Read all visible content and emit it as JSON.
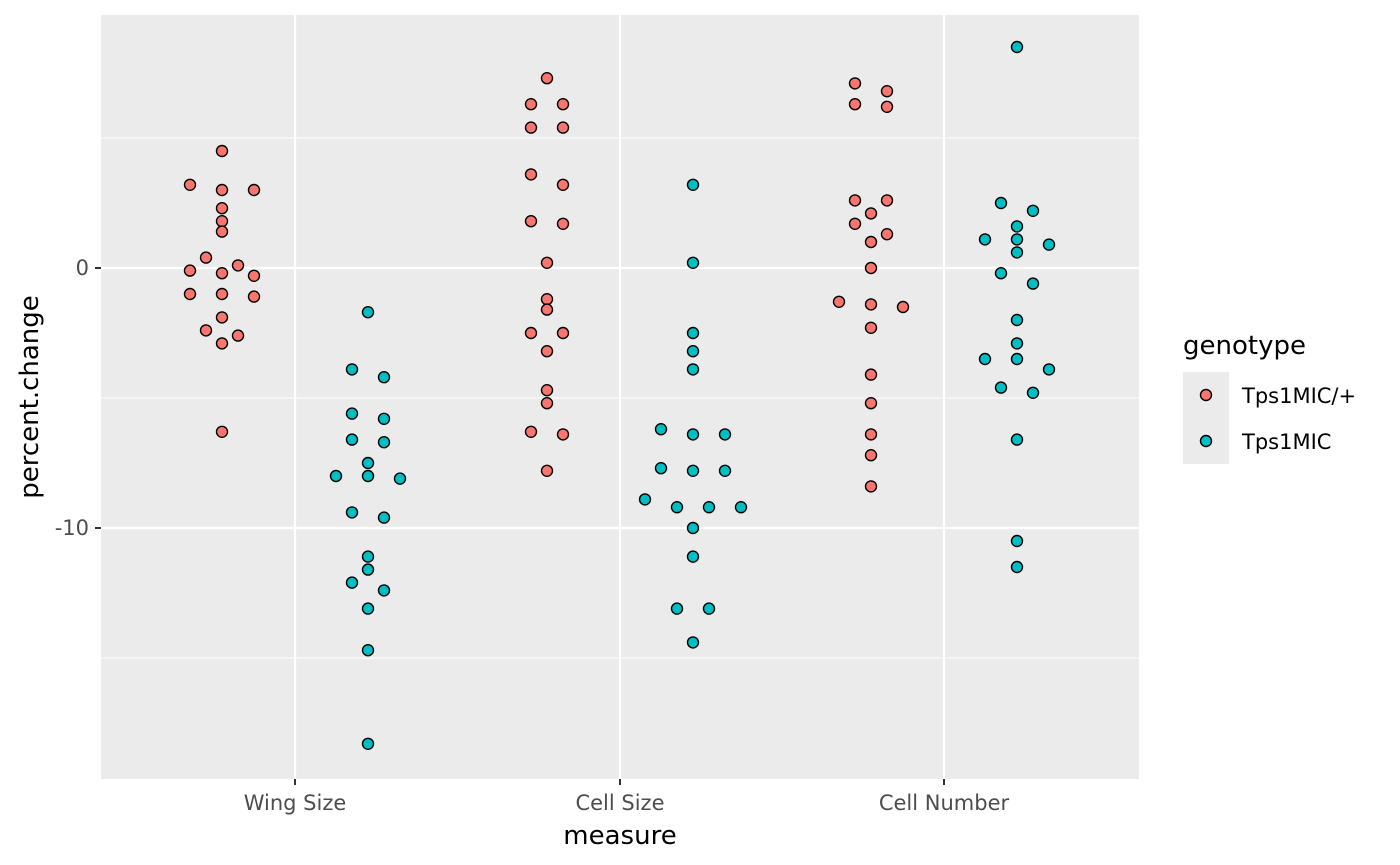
{
  "chart_data": {
    "type": "scatter",
    "subtype": "beeswarm",
    "xlabel": "measure",
    "ylabel": "percent.change",
    "categories": [
      "Wing Size",
      "Cell Size",
      "Cell Number"
    ],
    "y_ticks": [
      0,
      -10
    ],
    "y_tick_labels": [
      "0",
      "-10"
    ],
    "ylim": [
      -19.5,
      9.9
    ],
    "grid": true,
    "legend": {
      "title": "genotype",
      "position": "right"
    },
    "series": [
      {
        "name": "Tps1MIC/+",
        "color": "#F8766D",
        "points": [
          {
            "x": "Wing Size",
            "y": 4.5
          },
          {
            "x": "Wing Size",
            "y": 3.0
          },
          {
            "x": "Wing Size",
            "y": 3.0
          },
          {
            "x": "Wing Size",
            "y": 3.2
          },
          {
            "x": "Wing Size",
            "y": 2.3
          },
          {
            "x": "Wing Size",
            "y": 1.8
          },
          {
            "x": "Wing Size",
            "y": 1.4
          },
          {
            "x": "Wing Size",
            "y": 0.4
          },
          {
            "x": "Wing Size",
            "y": 0.1
          },
          {
            "x": "Wing Size",
            "y": -0.1
          },
          {
            "x": "Wing Size",
            "y": -0.2
          },
          {
            "x": "Wing Size",
            "y": -0.3
          },
          {
            "x": "Wing Size",
            "y": -1.0
          },
          {
            "x": "Wing Size",
            "y": -1.0
          },
          {
            "x": "Wing Size",
            "y": -1.1
          },
          {
            "x": "Wing Size",
            "y": -1.9
          },
          {
            "x": "Wing Size",
            "y": -2.4
          },
          {
            "x": "Wing Size",
            "y": -2.6
          },
          {
            "x": "Wing Size",
            "y": -2.9
          },
          {
            "x": "Wing Size",
            "y": -6.3
          },
          {
            "x": "Cell Size",
            "y": 7.3
          },
          {
            "x": "Cell Size",
            "y": 6.3
          },
          {
            "x": "Cell Size",
            "y": 6.3
          },
          {
            "x": "Cell Size",
            "y": 5.4
          },
          {
            "x": "Cell Size",
            "y": 5.4
          },
          {
            "x": "Cell Size",
            "y": 3.6
          },
          {
            "x": "Cell Size",
            "y": 3.2
          },
          {
            "x": "Cell Size",
            "y": 1.8
          },
          {
            "x": "Cell Size",
            "y": 1.7
          },
          {
            "x": "Cell Size",
            "y": 0.2
          },
          {
            "x": "Cell Size",
            "y": -1.2
          },
          {
            "x": "Cell Size",
            "y": -1.6
          },
          {
            "x": "Cell Size",
            "y": -2.5
          },
          {
            "x": "Cell Size",
            "y": -2.5
          },
          {
            "x": "Cell Size",
            "y": -3.2
          },
          {
            "x": "Cell Size",
            "y": -4.7
          },
          {
            "x": "Cell Size",
            "y": -5.2
          },
          {
            "x": "Cell Size",
            "y": -6.3
          },
          {
            "x": "Cell Size",
            "y": -6.4
          },
          {
            "x": "Cell Size",
            "y": -7.8
          },
          {
            "x": "Cell Number",
            "y": 7.1
          },
          {
            "x": "Cell Number",
            "y": 6.8
          },
          {
            "x": "Cell Number",
            "y": 6.3
          },
          {
            "x": "Cell Number",
            "y": 6.2
          },
          {
            "x": "Cell Number",
            "y": 2.6
          },
          {
            "x": "Cell Number",
            "y": 2.6
          },
          {
            "x": "Cell Number",
            "y": 2.1
          },
          {
            "x": "Cell Number",
            "y": 1.7
          },
          {
            "x": "Cell Number",
            "y": 1.3
          },
          {
            "x": "Cell Number",
            "y": 1.0
          },
          {
            "x": "Cell Number",
            "y": 0.0
          },
          {
            "x": "Cell Number",
            "y": -1.3
          },
          {
            "x": "Cell Number",
            "y": -1.4
          },
          {
            "x": "Cell Number",
            "y": -1.5
          },
          {
            "x": "Cell Number",
            "y": -2.3
          },
          {
            "x": "Cell Number",
            "y": -4.1
          },
          {
            "x": "Cell Number",
            "y": -5.2
          },
          {
            "x": "Cell Number",
            "y": -6.4
          },
          {
            "x": "Cell Number",
            "y": -7.2
          },
          {
            "x": "Cell Number",
            "y": -8.4
          }
        ]
      },
      {
        "name": "Tps1MIC",
        "color": "#00BFC4",
        "points": [
          {
            "x": "Wing Size",
            "y": -1.7
          },
          {
            "x": "Wing Size",
            "y": -3.9
          },
          {
            "x": "Wing Size",
            "y": -4.2
          },
          {
            "x": "Wing Size",
            "y": -5.6
          },
          {
            "x": "Wing Size",
            "y": -5.8
          },
          {
            "x": "Wing Size",
            "y": -6.6
          },
          {
            "x": "Wing Size",
            "y": -6.7
          },
          {
            "x": "Wing Size",
            "y": -7.5
          },
          {
            "x": "Wing Size",
            "y": -8.0
          },
          {
            "x": "Wing Size",
            "y": -8.0
          },
          {
            "x": "Wing Size",
            "y": -8.1
          },
          {
            "x": "Wing Size",
            "y": -9.4
          },
          {
            "x": "Wing Size",
            "y": -9.6
          },
          {
            "x": "Wing Size",
            "y": -11.1
          },
          {
            "x": "Wing Size",
            "y": -11.6
          },
          {
            "x": "Wing Size",
            "y": -12.1
          },
          {
            "x": "Wing Size",
            "y": -12.4
          },
          {
            "x": "Wing Size",
            "y": -13.1
          },
          {
            "x": "Wing Size",
            "y": -14.7
          },
          {
            "x": "Wing Size",
            "y": -18.3
          },
          {
            "x": "Cell Size",
            "y": 3.2
          },
          {
            "x": "Cell Size",
            "y": 0.2
          },
          {
            "x": "Cell Size",
            "y": -2.5
          },
          {
            "x": "Cell Size",
            "y": -3.2
          },
          {
            "x": "Cell Size",
            "y": -3.9
          },
          {
            "x": "Cell Size",
            "y": -6.2
          },
          {
            "x": "Cell Size",
            "y": -6.4
          },
          {
            "x": "Cell Size",
            "y": -6.4
          },
          {
            "x": "Cell Size",
            "y": -7.7
          },
          {
            "x": "Cell Size",
            "y": -7.8
          },
          {
            "x": "Cell Size",
            "y": -7.8
          },
          {
            "x": "Cell Size",
            "y": -8.9
          },
          {
            "x": "Cell Size",
            "y": -9.2
          },
          {
            "x": "Cell Size",
            "y": -9.2
          },
          {
            "x": "Cell Size",
            "y": -9.2
          },
          {
            "x": "Cell Size",
            "y": -10.0
          },
          {
            "x": "Cell Size",
            "y": -11.1
          },
          {
            "x": "Cell Size",
            "y": -13.1
          },
          {
            "x": "Cell Size",
            "y": -13.1
          },
          {
            "x": "Cell Size",
            "y": -14.4
          },
          {
            "x": "Cell Number",
            "y": 8.5
          },
          {
            "x": "Cell Number",
            "y": 2.5
          },
          {
            "x": "Cell Number",
            "y": 2.2
          },
          {
            "x": "Cell Number",
            "y": 1.6
          },
          {
            "x": "Cell Number",
            "y": 1.1
          },
          {
            "x": "Cell Number",
            "y": 1.1
          },
          {
            "x": "Cell Number",
            "y": 0.9
          },
          {
            "x": "Cell Number",
            "y": 0.6
          },
          {
            "x": "Cell Number",
            "y": -0.2
          },
          {
            "x": "Cell Number",
            "y": -0.6
          },
          {
            "x": "Cell Number",
            "y": -2.0
          },
          {
            "x": "Cell Number",
            "y": -2.9
          },
          {
            "x": "Cell Number",
            "y": -3.5
          },
          {
            "x": "Cell Number",
            "y": -3.5
          },
          {
            "x": "Cell Number",
            "y": -3.9
          },
          {
            "x": "Cell Number",
            "y": -4.6
          },
          {
            "x": "Cell Number",
            "y": -4.8
          },
          {
            "x": "Cell Number",
            "y": -6.6
          },
          {
            "x": "Cell Number",
            "y": -10.5
          },
          {
            "x": "Cell Number",
            "y": -11.5
          }
        ]
      }
    ]
  }
}
